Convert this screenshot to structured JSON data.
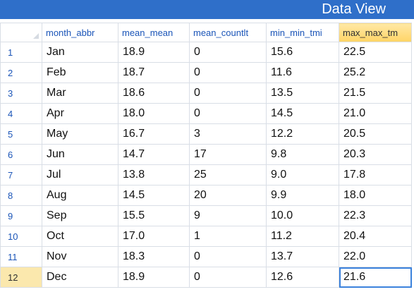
{
  "window": {
    "title": "Data View"
  },
  "table": {
    "columns": [
      "month_abbr",
      "mean_mean",
      "mean_countlt",
      "min_min_tmi",
      "max_max_tm"
    ],
    "active_column_index": 4,
    "rows": [
      {
        "num": "1",
        "cells": [
          "Jan",
          "18.9",
          "0",
          "15.6",
          "22.5"
        ]
      },
      {
        "num": "2",
        "cells": [
          "Feb",
          "18.7",
          "0",
          "11.6",
          "25.2"
        ]
      },
      {
        "num": "3",
        "cells": [
          "Mar",
          "18.6",
          "0",
          "13.5",
          "21.5"
        ]
      },
      {
        "num": "4",
        "cells": [
          "Apr",
          "18.0",
          "0",
          "14.5",
          "21.0"
        ]
      },
      {
        "num": "5",
        "cells": [
          "May",
          "16.7",
          "3",
          "12.2",
          "20.5"
        ]
      },
      {
        "num": "6",
        "cells": [
          "Jun",
          "14.7",
          "17",
          "9.8",
          "20.3"
        ]
      },
      {
        "num": "7",
        "cells": [
          "Jul",
          "13.8",
          "25",
          "9.0",
          "17.8"
        ]
      },
      {
        "num": "8",
        "cells": [
          "Aug",
          "14.5",
          "20",
          "9.9",
          "18.0"
        ]
      },
      {
        "num": "9",
        "cells": [
          "Sep",
          "15.5",
          "9",
          "10.0",
          "22.3"
        ]
      },
      {
        "num": "10",
        "cells": [
          "Oct",
          "17.0",
          "1",
          "11.2",
          "20.4"
        ]
      },
      {
        "num": "11",
        "cells": [
          "Nov",
          "18.3",
          "0",
          "13.7",
          "22.0"
        ]
      },
      {
        "num": "12",
        "cells": [
          "Dec",
          "18.9",
          "0",
          "12.6",
          "21.6"
        ]
      }
    ],
    "selected_row_index": 11,
    "selected_col_index": 4
  },
  "colors": {
    "title_bar": "#2f6fc9",
    "header_text": "#1b55b8",
    "active_header": "#ffd466",
    "active_row_header": "#fbe8ad",
    "selection_outline": "#3c82dc"
  }
}
